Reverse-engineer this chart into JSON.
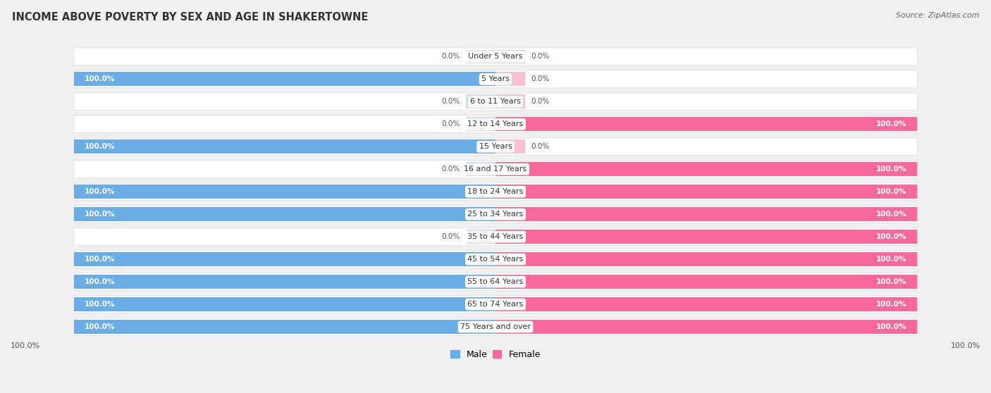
{
  "title": "INCOME ABOVE POVERTY BY SEX AND AGE IN SHAKERTOWNE",
  "source": "Source: ZipAtlas.com",
  "categories": [
    "Under 5 Years",
    "5 Years",
    "6 to 11 Years",
    "12 to 14 Years",
    "15 Years",
    "16 and 17 Years",
    "18 to 24 Years",
    "25 to 34 Years",
    "35 to 44 Years",
    "45 to 54 Years",
    "55 to 64 Years",
    "65 to 74 Years",
    "75 Years and over"
  ],
  "male_values": [
    0.0,
    100.0,
    0.0,
    0.0,
    100.0,
    0.0,
    100.0,
    100.0,
    0.0,
    100.0,
    100.0,
    100.0,
    100.0
  ],
  "female_values": [
    0.0,
    0.0,
    0.0,
    100.0,
    0.0,
    100.0,
    100.0,
    100.0,
    100.0,
    100.0,
    100.0,
    100.0,
    100.0
  ],
  "male_color": "#6aade4",
  "female_color": "#f7699a",
  "male_color_light": "#c8dff5",
  "female_color_light": "#f9c0cf",
  "bg_color": "#f0f0f0",
  "row_bg": "#fafafa",
  "title_color": "#333333",
  "source_color": "#666666",
  "label_dark": "#555555",
  "label_white": "#ffffff"
}
